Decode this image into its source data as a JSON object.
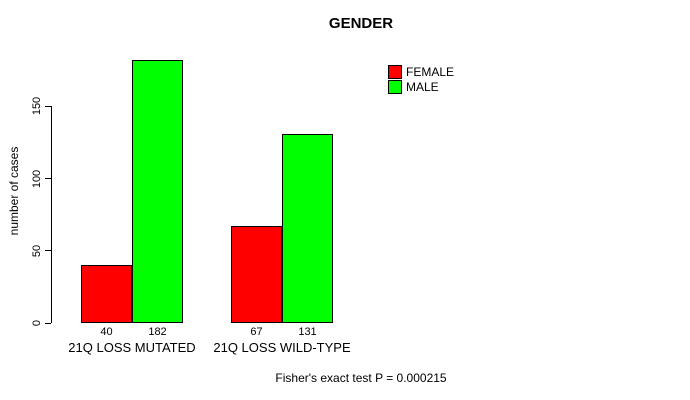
{
  "chart_data": {
    "type": "bar",
    "title": "GENDER",
    "xlabel": "",
    "ylabel": "number of cases",
    "categories": [
      "21Q LOSS MUTATED",
      "21Q LOSS WILD-TYPE"
    ],
    "series": [
      {
        "name": "FEMALE",
        "color": "#ff0000",
        "values": [
          40,
          67
        ]
      },
      {
        "name": "MALE",
        "color": "#00ff00",
        "values": [
          182,
          131
        ]
      }
    ],
    "yticks": [
      0,
      50,
      100,
      150
    ],
    "ylim": [
      0,
      183
    ],
    "grid": false,
    "legend_position": "top-right",
    "bar_border_color": "#000000",
    "axis_color": "#000000",
    "annotation": "Fisher's exact test P = 0.000215"
  }
}
